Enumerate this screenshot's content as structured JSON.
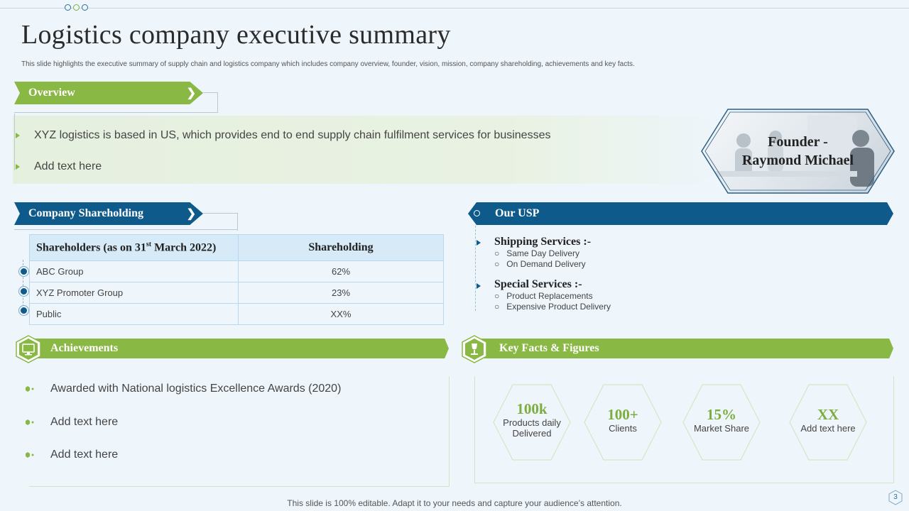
{
  "header": {
    "title": "Logistics company executive summary",
    "subtitle": "This slide highlights the executive summary of supply chain and logistics company which includes company overview, founder, vision, mission, company shareholding, achievements and key facts."
  },
  "overview": {
    "label": "Overview",
    "items": [
      "XYZ logistics is based in US, which provides end to end supply chain fulfilment  services for businesses",
      "Add text here"
    ]
  },
  "founder": {
    "line1": "Founder -",
    "line2": "Raymond Michael"
  },
  "shareholding": {
    "label": "Company Shareholding",
    "header_col1_prefix": "Shareholders (as on 31",
    "header_col1_sup": "st",
    "header_col1_suffix": " March 2022)",
    "header_col2": "Shareholding",
    "rows": [
      {
        "name": "ABC Group",
        "value": "62%"
      },
      {
        "name": "XYZ Promoter Group",
        "value": "23%"
      },
      {
        "name": "Public",
        "value": "XX%"
      }
    ]
  },
  "usp": {
    "label": "Our USP",
    "groups": [
      {
        "heading": "Shipping Services :-",
        "items": [
          "Same Day Delivery",
          "On Demand Delivery"
        ]
      },
      {
        "heading": "Special Services :-",
        "items": [
          "Product Replacements",
          "Expensive Product Delivery"
        ]
      }
    ]
  },
  "achievements": {
    "label": "Achievements",
    "items": [
      "Awarded with National logistics Excellence Awards (2020)",
      "Add text here",
      "Add text here"
    ]
  },
  "key_facts": {
    "label": "Key Facts & Figures",
    "facts": [
      {
        "value": "100k",
        "label_line1": "Products daily",
        "label_line2": "Delivered"
      },
      {
        "value": "100+",
        "label_line1": "Clients",
        "label_line2": ""
      },
      {
        "value": "15%",
        "label_line1": "Market Share",
        "label_line2": ""
      },
      {
        "value": "XX",
        "label_line1": "Add text here",
        "label_line2": ""
      }
    ]
  },
  "footer": {
    "text": "This slide is 100% editable. Adapt it to your needs and capture your audience’s attention.",
    "page_number": "3"
  },
  "colors": {
    "green": "#8ab844",
    "blue": "#0e5a8a",
    "background": "#eef5fb"
  }
}
